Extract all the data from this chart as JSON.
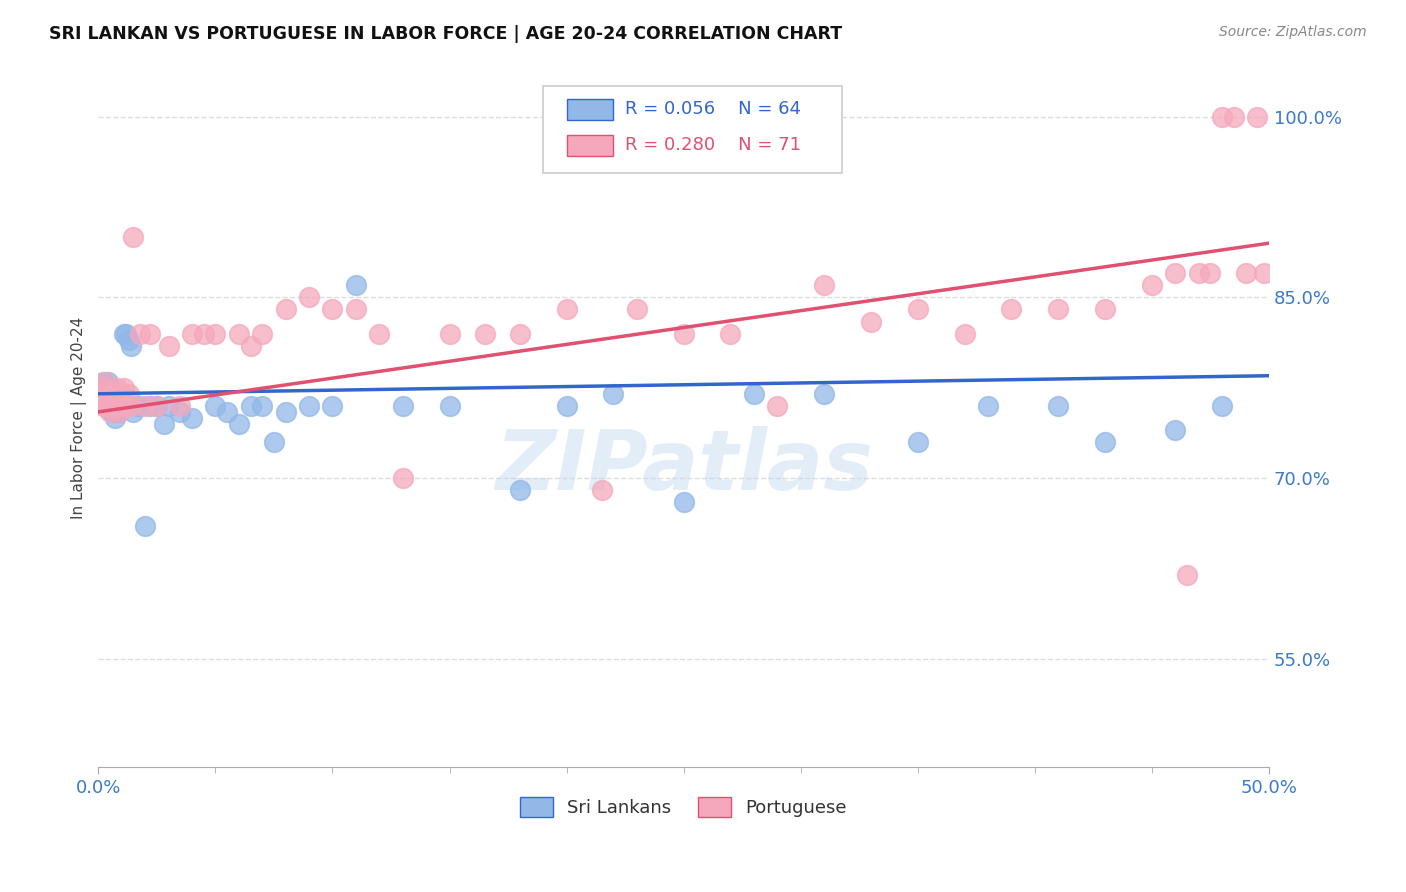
{
  "title": "SRI LANKAN VS PORTUGUESE IN LABOR FORCE | AGE 20-24 CORRELATION CHART",
  "source_text": "Source: ZipAtlas.com",
  "ylabel": "In Labor Force | Age 20-24",
  "xlim": [
    0.0,
    0.5
  ],
  "ylim": [
    0.46,
    1.04
  ],
  "ytick_positions": [
    0.55,
    0.7,
    0.85,
    1.0
  ],
  "grid_color": "#dddddd",
  "background_color": "#ffffff",
  "sri_lankan_color": "#92b8e8",
  "portuguese_color": "#f5a8bc",
  "sri_lankan_line_color": "#3366cc",
  "portuguese_line_color": "#e05070",
  "r_sri": 0.056,
  "n_sri": 64,
  "r_port": 0.28,
  "n_port": 71,
  "watermark": "ZIPatlas",
  "sri_lankans_x": [
    0.001,
    0.002,
    0.002,
    0.003,
    0.003,
    0.003,
    0.004,
    0.004,
    0.004,
    0.005,
    0.005,
    0.005,
    0.006,
    0.006,
    0.006,
    0.007,
    0.007,
    0.007,
    0.007,
    0.008,
    0.008,
    0.008,
    0.009,
    0.009,
    0.01,
    0.01,
    0.011,
    0.012,
    0.013,
    0.014,
    0.015,
    0.016,
    0.018,
    0.02,
    0.022,
    0.025,
    0.028,
    0.03,
    0.035,
    0.04,
    0.05,
    0.055,
    0.06,
    0.065,
    0.07,
    0.075,
    0.08,
    0.09,
    0.1,
    0.11,
    0.13,
    0.15,
    0.18,
    0.2,
    0.22,
    0.25,
    0.28,
    0.31,
    0.35,
    0.38,
    0.41,
    0.43,
    0.46,
    0.48
  ],
  "sri_lankans_y": [
    0.77,
    0.775,
    0.78,
    0.76,
    0.765,
    0.775,
    0.76,
    0.77,
    0.78,
    0.765,
    0.76,
    0.775,
    0.77,
    0.76,
    0.755,
    0.76,
    0.77,
    0.76,
    0.75,
    0.77,
    0.765,
    0.755,
    0.76,
    0.755,
    0.77,
    0.76,
    0.82,
    0.82,
    0.815,
    0.81,
    0.755,
    0.76,
    0.76,
    0.66,
    0.76,
    0.76,
    0.745,
    0.76,
    0.755,
    0.75,
    0.76,
    0.755,
    0.745,
    0.76,
    0.76,
    0.73,
    0.755,
    0.76,
    0.76,
    0.86,
    0.76,
    0.76,
    0.69,
    0.76,
    0.77,
    0.68,
    0.77,
    0.77,
    0.73,
    0.76,
    0.76,
    0.73,
    0.74,
    0.76
  ],
  "portuguese_x": [
    0.001,
    0.002,
    0.002,
    0.003,
    0.003,
    0.004,
    0.004,
    0.004,
    0.005,
    0.005,
    0.005,
    0.006,
    0.006,
    0.007,
    0.007,
    0.007,
    0.008,
    0.008,
    0.009,
    0.009,
    0.01,
    0.01,
    0.011,
    0.012,
    0.013,
    0.014,
    0.015,
    0.018,
    0.02,
    0.022,
    0.025,
    0.03,
    0.035,
    0.04,
    0.045,
    0.05,
    0.06,
    0.065,
    0.07,
    0.08,
    0.09,
    0.1,
    0.11,
    0.12,
    0.13,
    0.15,
    0.165,
    0.18,
    0.2,
    0.215,
    0.23,
    0.25,
    0.27,
    0.29,
    0.31,
    0.33,
    0.35,
    0.37,
    0.39,
    0.41,
    0.43,
    0.45,
    0.46,
    0.465,
    0.47,
    0.475,
    0.48,
    0.485,
    0.49,
    0.495,
    0.498
  ],
  "portuguese_y": [
    0.77,
    0.775,
    0.76,
    0.78,
    0.76,
    0.77,
    0.76,
    0.76,
    0.77,
    0.76,
    0.755,
    0.77,
    0.76,
    0.77,
    0.76,
    0.76,
    0.775,
    0.76,
    0.77,
    0.755,
    0.77,
    0.76,
    0.775,
    0.76,
    0.77,
    0.76,
    0.9,
    0.82,
    0.76,
    0.82,
    0.76,
    0.81,
    0.76,
    0.82,
    0.82,
    0.82,
    0.82,
    0.81,
    0.82,
    0.84,
    0.85,
    0.84,
    0.84,
    0.82,
    0.7,
    0.82,
    0.82,
    0.82,
    0.84,
    0.69,
    0.84,
    0.82,
    0.82,
    0.76,
    0.86,
    0.83,
    0.84,
    0.82,
    0.84,
    0.84,
    0.84,
    0.86,
    0.87,
    0.62,
    0.87,
    0.87,
    1.0,
    1.0,
    0.87,
    1.0,
    0.87
  ]
}
